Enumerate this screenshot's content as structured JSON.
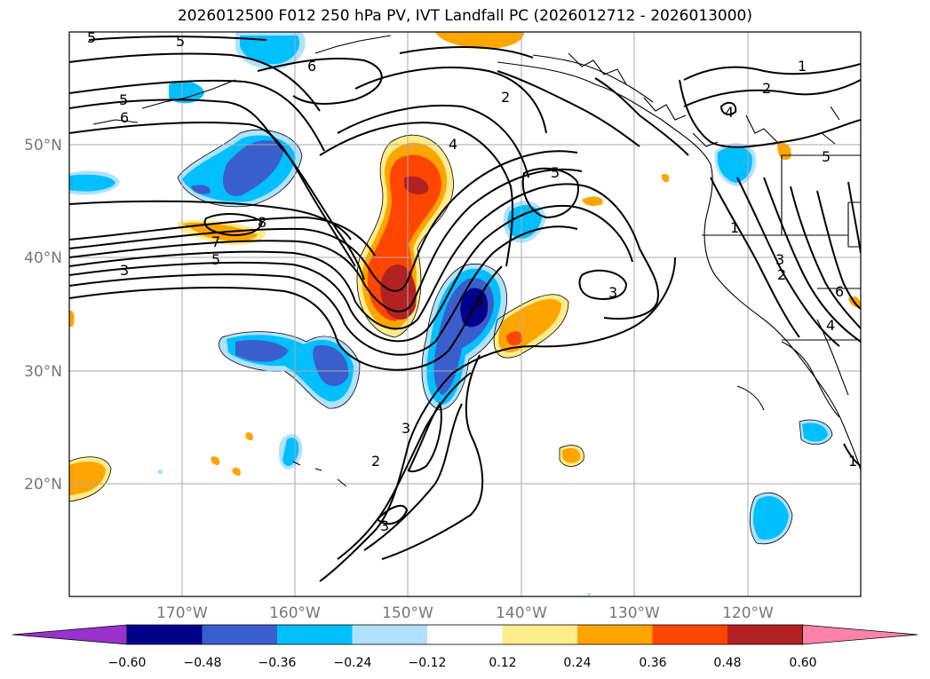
{
  "title": "2026012500 F012 250 hPa PV, IVT Landfall PC (2026012712 - 2026013000)",
  "lat_labels": [
    "50°N",
    "40°N",
    "30°N",
    "20°N"
  ],
  "lon_labels": [
    "170°W",
    "160°W",
    "150°W",
    "140°W",
    "130°W",
    "120°W"
  ],
  "colorbar": {
    "ticks": [
      "−0.60",
      "−0.48",
      "−0.36",
      "−0.24",
      "−0.12",
      "0.12",
      "0.24",
      "0.36",
      "0.48",
      "0.60"
    ],
    "colors": [
      "#9932CC",
      "#00008B",
      "#3A5FCD",
      "#00BFFF",
      "#B0E2FF",
      "#FFFFFF",
      "#FFEC8B",
      "#FFA500",
      "#FF4500",
      "#B22222",
      "#FF82AB"
    ]
  },
  "contour_labels": [
    "5",
    "5",
    "5",
    "6",
    "6",
    "2",
    "4",
    "5",
    "8",
    "7",
    "5",
    "3",
    "3",
    "1",
    "2",
    "1",
    "4",
    "3",
    "5",
    "6",
    "4",
    "3",
    "2",
    "3",
    "3",
    "2",
    "1"
  ],
  "colors": {
    "grid": "#aaaaaa",
    "contour": "#000000",
    "coast": "#000000"
  }
}
